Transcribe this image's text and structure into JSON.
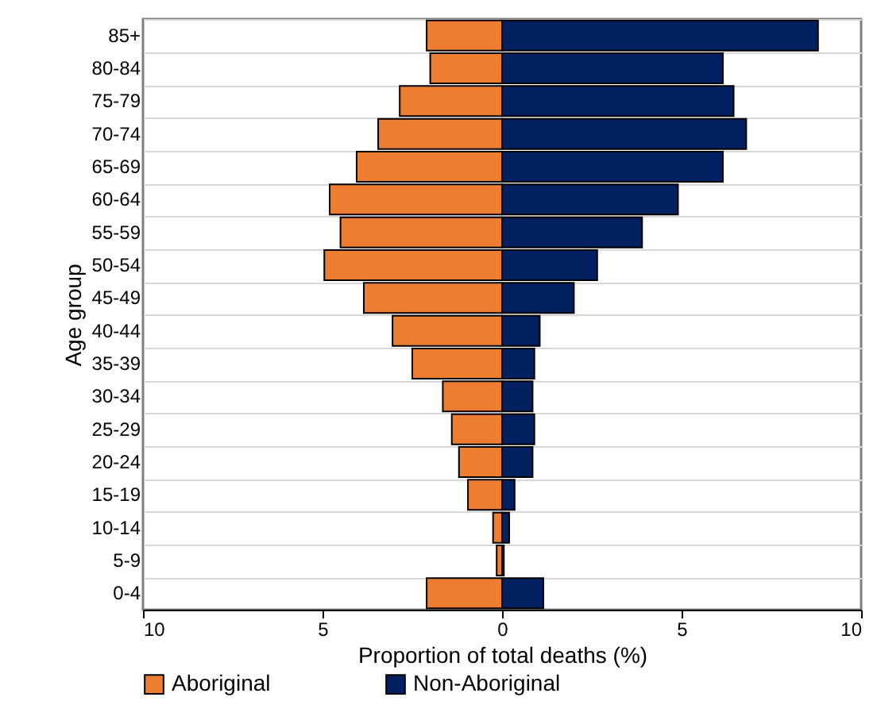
{
  "chart_data": {
    "type": "bar",
    "orientation": "horizontal",
    "xlabel": "Proportion of total deaths (%)",
    "ylabel": "Age group",
    "categories": [
      "85+",
      "80-84",
      "75-79",
      "70-74",
      "65-69",
      "60-64",
      "55-59",
      "50-54",
      "45-49",
      "40-44",
      "35-39",
      "30-34",
      "25-29",
      "20-24",
      "15-19",
      "10-14",
      "5-9",
      "0-4"
    ],
    "series": [
      {
        "name": "Aboriginal",
        "color": "#ed7d31",
        "values": [
          -2.1,
          -2.0,
          -2.85,
          -3.45,
          -4.05,
          -4.8,
          -4.5,
          -4.95,
          -3.85,
          -3.05,
          -2.5,
          -1.65,
          -1.4,
          -1.2,
          -0.95,
          -0.25,
          -0.15,
          -2.1
        ]
      },
      {
        "name": "Non-Aboriginal",
        "color": "#002060",
        "values": [
          8.8,
          6.15,
          6.45,
          6.8,
          6.15,
          4.9,
          3.9,
          2.65,
          2.0,
          1.05,
          0.9,
          0.85,
          0.9,
          0.85,
          0.35,
          0.2,
          0.05,
          1.15
        ]
      }
    ],
    "xlim": [
      -10,
      10
    ],
    "xticks": [
      {
        "value": -10,
        "label": "10"
      },
      {
        "value": -5,
        "label": "5"
      },
      0,
      5,
      10
    ],
    "grid": "y",
    "legend": "bottom",
    "stacked": true
  }
}
